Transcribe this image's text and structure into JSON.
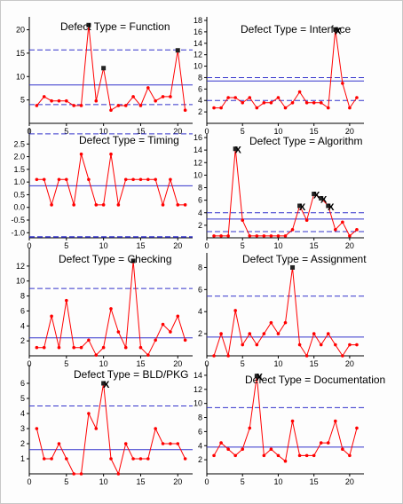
{
  "colors": {
    "series": "#ff0000",
    "center_line": "#3333cc",
    "limit_line": "#3333cc",
    "limit_line_alt": "#8888dd",
    "signal_marker": "#222222",
    "axis": "#000000"
  },
  "chart_data": [
    {
      "type": "line",
      "title": "Defect Type = Function",
      "x": [
        1,
        2,
        3,
        4,
        5,
        6,
        7,
        8,
        9,
        10,
        11,
        12,
        13,
        14,
        15,
        16,
        17,
        18,
        19,
        20,
        21
      ],
      "y": [
        3.8,
        5.7,
        4.8,
        4.8,
        4.8,
        3.8,
        3.8,
        21,
        4.8,
        11.8,
        2.8,
        3.8,
        3.8,
        5.7,
        3.8,
        7.6,
        4.8,
        5.7,
        5.7,
        15.6,
        2.8
      ],
      "center_line": 8.2,
      "upper_limit": 15.7,
      "lower_limit": 4.0,
      "signals": [
        8,
        10,
        20
      ],
      "xlim": [
        0,
        22
      ],
      "ylim": [
        0,
        22
      ],
      "xticks": [
        0,
        5,
        10,
        15,
        20
      ],
      "yticks": [
        5,
        10,
        15,
        20
      ]
    },
    {
      "type": "line",
      "title": "Defect Type = Interface",
      "x": [
        1,
        2,
        3,
        4,
        5,
        6,
        7,
        8,
        9,
        10,
        11,
        12,
        13,
        14,
        15,
        16,
        17,
        18,
        19,
        20,
        21
      ],
      "y": [
        2.7,
        2.7,
        4.5,
        4.5,
        3.6,
        4.5,
        2.7,
        3.6,
        3.6,
        4.5,
        2.7,
        3.6,
        5.5,
        3.6,
        3.6,
        3.6,
        2.7,
        16.4,
        7,
        2.7,
        4.5
      ],
      "center_line": 7.4,
      "upper_limit": 8.0,
      "lower_limit": 4.0,
      "signals": [
        18
      ],
      "x_marks": [
        18
      ],
      "xlim": [
        0,
        22
      ],
      "ylim": [
        0,
        18
      ],
      "xticks": [
        0,
        5,
        10,
        15,
        20
      ],
      "yticks": [
        2,
        4,
        6,
        8,
        10,
        12,
        14,
        16,
        18
      ]
    },
    {
      "type": "line",
      "title": "Defect Type = Timing",
      "x": [
        1,
        2,
        3,
        4,
        5,
        6,
        7,
        8,
        9,
        10,
        11,
        12,
        13,
        14,
        15,
        16,
        17,
        18,
        19,
        20,
        21
      ],
      "y": [
        1.1,
        1.1,
        0.1,
        1.1,
        1.1,
        0.1,
        2.1,
        1.1,
        0.1,
        0.1,
        2.1,
        0.1,
        1.1,
        1.1,
        1.1,
        1.1,
        1.1,
        0.1,
        1.1,
        0.1,
        0.1
      ],
      "center_line": 0.85,
      "upper_limit": 2.9,
      "lower_limit": -1.2,
      "signals": [],
      "xlim": [
        0,
        22
      ],
      "ylim": [
        -1.2,
        3.0
      ],
      "xticks": [
        0,
        5,
        10,
        15,
        20
      ],
      "yticks": [
        -1.0,
        -0.5,
        0.0,
        0.5,
        1.0,
        1.5,
        2.0,
        2.5
      ]
    },
    {
      "type": "line",
      "title": "Defect Type = Algorithm",
      "x": [
        1,
        2,
        3,
        4,
        5,
        6,
        7,
        8,
        9,
        10,
        11,
        12,
        13,
        14,
        15,
        16,
        17,
        18,
        19,
        20,
        21
      ],
      "y": [
        0.3,
        0.3,
        0.3,
        14.2,
        2.8,
        0.3,
        0.3,
        0.3,
        0.3,
        0.3,
        0.3,
        1.3,
        5.1,
        2.8,
        7,
        6.3,
        5.1,
        1.3,
        2.5,
        0.3,
        1.3
      ],
      "center_line": 3.0,
      "upper_limit": 4.0,
      "lower_limit": 1.0,
      "signals": [
        4,
        13,
        15,
        16,
        17
      ],
      "x_marks": [
        4,
        13,
        15,
        16,
        17
      ],
      "xlim": [
        0,
        22
      ],
      "ylim": [
        0,
        16
      ],
      "xticks": [
        0,
        5,
        10,
        15,
        20
      ],
      "yticks": [
        2,
        4,
        6,
        8,
        10,
        12,
        14,
        16
      ]
    },
    {
      "type": "line",
      "title": "Defect Type = Checking",
      "x": [
        1,
        2,
        3,
        4,
        5,
        6,
        7,
        8,
        9,
        10,
        11,
        12,
        13,
        14,
        15,
        16,
        17,
        18,
        19,
        20,
        21
      ],
      "y": [
        1.1,
        1.1,
        5.3,
        1.1,
        7.4,
        1.1,
        1.1,
        2.1,
        0.1,
        1.1,
        6.3,
        3.2,
        1.1,
        12.7,
        1.1,
        0.1,
        2.1,
        4.2,
        3.2,
        5.3,
        2.1
      ],
      "center_line": 2.4,
      "upper_limit": 9.0,
      "lower_limit": 0,
      "signals": [
        14
      ],
      "xlim": [
        0,
        22
      ],
      "ylim": [
        0,
        14
      ],
      "xticks": [
        0,
        5,
        10,
        15,
        20
      ],
      "yticks": [
        2,
        4,
        6,
        8,
        10,
        12
      ]
    },
    {
      "type": "line",
      "title": "Defect Type = Assignment",
      "x": [
        1,
        2,
        3,
        4,
        5,
        6,
        7,
        8,
        9,
        10,
        11,
        12,
        13,
        14,
        15,
        16,
        17,
        18,
        19,
        20,
        21
      ],
      "y": [
        0,
        2,
        0,
        4.1,
        1,
        2,
        1,
        2,
        3,
        2,
        3,
        8,
        1,
        0,
        2,
        1,
        2,
        1,
        0,
        1,
        1
      ],
      "center_line": 1.7,
      "upper_limit": 5.4,
      "lower_limit": 0,
      "signals": [
        12
      ],
      "xlim": [
        0,
        22
      ],
      "ylim": [
        0,
        9
      ],
      "xticks": [
        0,
        5,
        10,
        15,
        20
      ],
      "yticks": [
        2,
        4,
        6,
        8
      ]
    },
    {
      "type": "line",
      "title": "Defect Type = BLD/PKG",
      "x": [
        1,
        2,
        3,
        4,
        5,
        6,
        7,
        8,
        9,
        10,
        11,
        12,
        13,
        14,
        15,
        16,
        17,
        18,
        19,
        20,
        21
      ],
      "y": [
        3,
        1,
        1,
        2,
        1,
        0,
        0,
        4,
        3,
        6,
        1,
        0,
        2,
        1,
        1,
        1,
        3,
        2,
        2,
        2,
        1
      ],
      "center_line": 1.6,
      "upper_limit": 4.5,
      "lower_limit": 0,
      "signals": [
        10
      ],
      "x_marks": [
        10
      ],
      "xlim": [
        0,
        22
      ],
      "ylim": [
        0,
        7
      ],
      "xticks": [
        0,
        5,
        10,
        15,
        20
      ],
      "yticks": [
        1,
        2,
        3,
        4,
        5,
        6
      ]
    },
    {
      "type": "line",
      "title": "Defect Type = Documentation",
      "x": [
        1,
        2,
        3,
        4,
        5,
        6,
        7,
        8,
        9,
        10,
        11,
        12,
        13,
        14,
        15,
        16,
        17,
        18,
        19,
        20,
        21
      ],
      "y": [
        2.6,
        4.4,
        3.5,
        2.6,
        3.5,
        6.5,
        13.9,
        2.6,
        3.5,
        2.6,
        1.8,
        7.5,
        2.6,
        2.6,
        2.6,
        4.4,
        4.4,
        7.5,
        3.5,
        2.6,
        6.5
      ],
      "center_line": 3.8,
      "upper_limit": 9.4,
      "lower_limit": 0,
      "signals": [
        7
      ],
      "x_marks": [
        7
      ],
      "xlim": [
        0,
        22
      ],
      "ylim": [
        0,
        15
      ],
      "xticks": [
        0,
        5,
        10,
        15,
        20
      ],
      "yticks": [
        2,
        4,
        6,
        8,
        10,
        12,
        14
      ]
    }
  ]
}
